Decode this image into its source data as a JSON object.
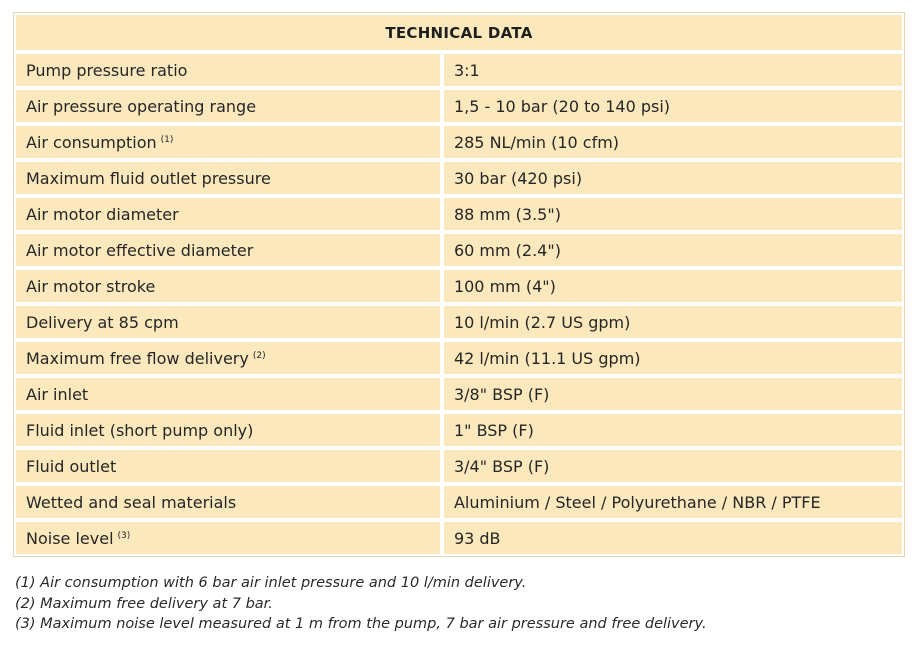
{
  "table": {
    "title": "TECHNICAL DATA",
    "rows": [
      {
        "label": "Pump pressure ratio",
        "note": "",
        "value": "3:1"
      },
      {
        "label": "Air pressure operating range",
        "note": "",
        "value": "1,5 - 10 bar (20 to 140 psi)"
      },
      {
        "label": "Air consumption",
        "note": "(1)",
        "value": "285 NL/min (10 cfm)"
      },
      {
        "label": "Maximum fluid outlet pressure",
        "note": "",
        "value": "30 bar (420 psi)"
      },
      {
        "label": "Air motor diameter",
        "note": "",
        "value": "88 mm (3.5\")"
      },
      {
        "label": "Air motor effective diameter",
        "note": "",
        "value": "60 mm (2.4\")"
      },
      {
        "label": "Air motor stroke",
        "note": "",
        "value": "100 mm (4\")"
      },
      {
        "label": "Delivery at 85 cpm",
        "note": "",
        "value": "10 l/min (2.7 US gpm)"
      },
      {
        "label": "Maximum free flow delivery",
        "note": "(2)",
        "value": "42 l/min (11.1 US gpm)"
      },
      {
        "label": "Air inlet",
        "note": "",
        "value": "3/8\" BSP (F)"
      },
      {
        "label": "Fluid inlet (short pump only)",
        "note": "",
        "value": "1\" BSP (F)"
      },
      {
        "label": "Fluid outlet",
        "note": "",
        "value": "3/4\" BSP (F)"
      },
      {
        "label": "Wetted and seal materials",
        "note": "",
        "value": "Aluminium / Steel / Polyurethane / NBR / PTFE"
      },
      {
        "label": "Noise level",
        "note": "(3)",
        "value": "93 dB"
      }
    ]
  },
  "footnotes": [
    "(1) Air consumption with 6 bar air inlet pressure and 10 l/min delivery.",
    "(2) Maximum free delivery at 7 bar.",
    "(3) Maximum noise level measured at 1 m from the pump, 7 bar air pressure and free delivery."
  ],
  "colors": {
    "cell_background": "#fbe8bd",
    "cell_border": "#ffffff",
    "outer_border": "#e2d6b4"
  }
}
